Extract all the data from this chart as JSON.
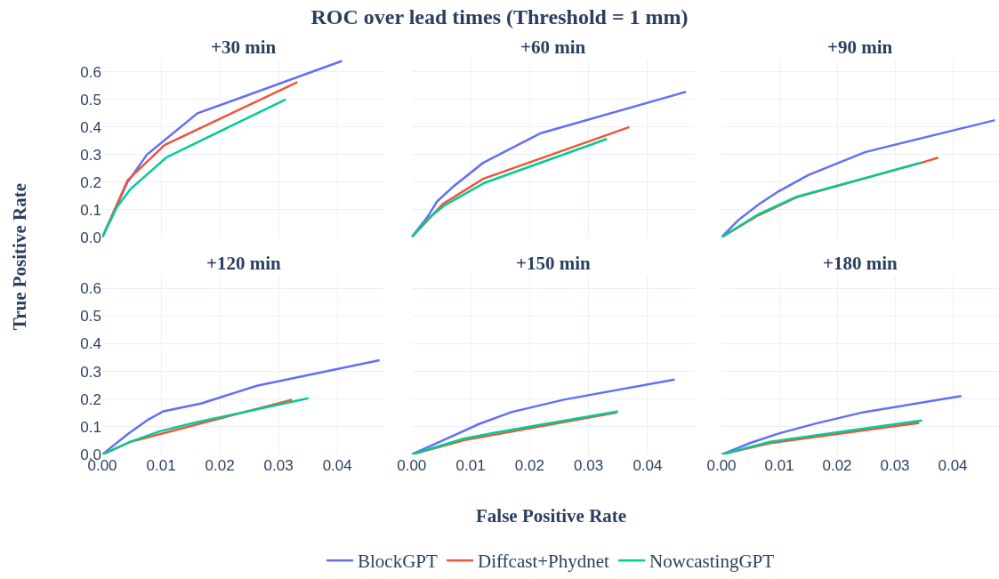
{
  "chart_data": [
    {
      "type": "line",
      "title": "ROC over lead times (Threshold = 1 mm)",
      "subtitle": "+30 min",
      "xlabel": "False Positive Rate",
      "ylabel": "True Positive Rate",
      "legend": "bottom",
      "grid": true,
      "tick_labels": "y",
      "xlim": [
        0,
        0.048
      ],
      "ylim": [
        0,
        0.645
      ],
      "xticks": [
        0,
        0.01,
        0.02,
        0.03,
        0.04
      ],
      "yticks": [
        {
          "value": 0,
          "label": "0.0"
        },
        0.1,
        0.2,
        0.3,
        0.4,
        0.5,
        0.6
      ],
      "series": [
        {
          "name": "BlockGPT",
          "color": "#636efa",
          "x": [
            0,
            0.0043,
            0.0076,
            0.0162,
            0.0408
          ],
          "values": [
            0,
            0.2,
            0.3,
            0.45,
            0.64
          ]
        },
        {
          "name": "Diffcast+Phydnet",
          "color": "#ef553b",
          "x": [
            0,
            0.0043,
            0.0106,
            0.0332
          ],
          "values": [
            0,
            0.207,
            0.335,
            0.563
          ]
        },
        {
          "name": "NowcastingGPT",
          "color": "#00cc96",
          "x": [
            0,
            0.0025,
            0.0048,
            0.0109,
            0.0312
          ],
          "values": [
            0,
            0.11,
            0.175,
            0.29,
            0.5
          ]
        }
      ]
    },
    {
      "type": "line",
      "subtitle": "+60 min",
      "grid": true,
      "tick_labels": false,
      "xlim": [
        0,
        0.048
      ],
      "ylim": [
        0,
        0.645
      ],
      "xticks": [
        0,
        0.01,
        0.02,
        0.03,
        0.04
      ],
      "yticks": [
        0,
        0.1,
        0.2,
        0.3,
        0.4,
        0.5,
        0.6
      ],
      "series": [
        {
          "color": "#636efa",
          "x": [
            0,
            0.0028,
            0.0043,
            0.0071,
            0.0121,
            0.0219,
            0.0465
          ],
          "values": [
            0,
            0.078,
            0.13,
            0.185,
            0.27,
            0.378,
            0.528
          ]
        },
        {
          "color": "#ef553b",
          "x": [
            0,
            0.0053,
            0.0121,
            0.0369
          ],
          "values": [
            0,
            0.121,
            0.212,
            0.4
          ]
        },
        {
          "color": "#00cc96",
          "x": [
            0,
            0.0028,
            0.0056,
            0.0124,
            0.0331
          ],
          "values": [
            0,
            0.068,
            0.116,
            0.198,
            0.357
          ]
        }
      ]
    },
    {
      "type": "line",
      "subtitle": "+90 min",
      "grid": true,
      "tick_labels": false,
      "xlim": [
        0,
        0.048
      ],
      "ylim": [
        0,
        0.645
      ],
      "xticks": [
        0,
        0.01,
        0.02,
        0.03,
        0.04
      ],
      "yticks": [
        0,
        0.1,
        0.2,
        0.3,
        0.4,
        0.5,
        0.6
      ],
      "series": [
        {
          "color": "#636efa",
          "x": [
            0,
            0.0029,
            0.0064,
            0.0099,
            0.015,
            0.0248,
            0.0473
          ],
          "values": [
            0,
            0.062,
            0.119,
            0.167,
            0.226,
            0.309,
            0.425
          ]
        },
        {
          "color": "#ef553b",
          "x": [
            0,
            0.0064,
            0.013,
            0.0346,
            0.0375
          ],
          "values": [
            0,
            0.08,
            0.145,
            0.271,
            0.289
          ]
        },
        {
          "color": "#00cc96",
          "x": [
            0,
            0.0064,
            0.013,
            0.0346
          ],
          "values": [
            0,
            0.084,
            0.147,
            0.271
          ]
        }
      ]
    },
    {
      "type": "line",
      "subtitle": "+120 min",
      "grid": true,
      "xlim": [
        0,
        0.048
      ],
      "ylim": [
        0,
        0.645
      ],
      "xticks": [
        {
          "value": 0,
          "label": "0.00"
        },
        {
          "value": 0.01,
          "label": "0.01"
        },
        {
          "value": 0.02,
          "label": "0.02"
        },
        {
          "value": 0.03,
          "label": "0.03"
        },
        {
          "value": 0.04,
          "label": "0.04"
        }
      ],
      "yticks": [
        {
          "value": 0,
          "label": "0.0"
        },
        0.1,
        0.2,
        0.3,
        0.4,
        0.5,
        0.6
      ],
      "series": [
        {
          "color": "#636efa",
          "x": [
            0,
            0.0043,
            0.0078,
            0.0104,
            0.0169,
            0.0263,
            0.0472
          ],
          "values": [
            0,
            0.073,
            0.126,
            0.156,
            0.185,
            0.248,
            0.341
          ]
        },
        {
          "color": "#ef553b",
          "x": [
            0,
            0.0048,
            0.0323
          ],
          "values": [
            0,
            0.046,
            0.198
          ]
        },
        {
          "color": "#00cc96",
          "x": [
            0,
            0.0048,
            0.0098,
            0.0159,
            0.0351
          ],
          "values": [
            0,
            0.046,
            0.084,
            0.116,
            0.203
          ]
        }
      ]
    },
    {
      "type": "line",
      "subtitle": "+150 min",
      "grid": true,
      "tick_labels": "x",
      "xlim": [
        0,
        0.048
      ],
      "ylim": [
        0,
        0.645
      ],
      "xticks": [
        {
          "value": 0,
          "label": "0.00"
        },
        {
          "value": 0.01,
          "label": "0.01"
        },
        {
          "value": 0.02,
          "label": "0.02"
        },
        {
          "value": 0.03,
          "label": "0.03"
        },
        {
          "value": 0.04,
          "label": "0.04"
        }
      ],
      "yticks": [
        0,
        0.1,
        0.2,
        0.3,
        0.4,
        0.5,
        0.6
      ],
      "series": [
        {
          "color": "#636efa",
          "x": [
            0,
            0.0048,
            0.0114,
            0.0169,
            0.0258,
            0.0446
          ],
          "values": [
            0,
            0.046,
            0.11,
            0.153,
            0.198,
            0.271
          ]
        },
        {
          "color": "#ef553b",
          "x": [
            0,
            0.0088,
            0.0348
          ],
          "values": [
            0,
            0.051,
            0.152
          ]
        },
        {
          "color": "#00cc96",
          "x": [
            0,
            0.0088,
            0.0139,
            0.035
          ],
          "values": [
            0,
            0.057,
            0.078,
            0.156
          ]
        }
      ]
    },
    {
      "type": "line",
      "subtitle": "+180 min",
      "grid": true,
      "tick_labels": "x",
      "xlim": [
        0,
        0.048
      ],
      "ylim": [
        0,
        0.645
      ],
      "xticks": [
        {
          "value": 0,
          "label": "0.00"
        },
        {
          "value": 0.01,
          "label": "0.01"
        },
        {
          "value": 0.02,
          "label": "0.02"
        },
        {
          "value": 0.03,
          "label": "0.03"
        },
        {
          "value": 0.04,
          "label": "0.04"
        }
      ],
      "yticks": [
        0,
        0.1,
        0.2,
        0.3,
        0.4,
        0.5,
        0.6
      ],
      "series": [
        {
          "color": "#636efa",
          "x": [
            0,
            0.0049,
            0.0099,
            0.0165,
            0.0246,
            0.0415
          ],
          "values": [
            0,
            0.041,
            0.076,
            0.113,
            0.153,
            0.211
          ]
        },
        {
          "color": "#ef553b",
          "x": [
            0,
            0.0084,
            0.0342
          ],
          "values": [
            0,
            0.041,
            0.114
          ]
        },
        {
          "color": "#00cc96",
          "x": [
            0,
            0.0084,
            0.0347
          ],
          "values": [
            0,
            0.046,
            0.123
          ]
        }
      ]
    }
  ]
}
